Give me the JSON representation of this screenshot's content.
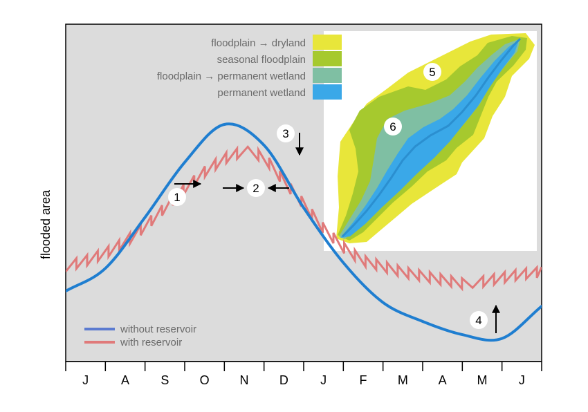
{
  "chart_data": {
    "type": "line",
    "ylabel": "flooded area",
    "x_ticks": [
      "J",
      "A",
      "S",
      "O",
      "N",
      "D",
      "J",
      "F",
      "M",
      "A",
      "M",
      "J"
    ],
    "series": [
      {
        "name": "without reservoir",
        "color": "#1f7ed0",
        "x": [
          0,
          1,
          2,
          3,
          4,
          5,
          6,
          7,
          8,
          9,
          10,
          11,
          12
        ],
        "values": [
          0.12,
          0.24,
          0.51,
          0.8,
          1.0,
          0.89,
          0.56,
          0.27,
          0.06,
          -0.04,
          -0.11,
          -0.13,
          0.04
        ]
      },
      {
        "name": "with reservoir",
        "color": "#e07a7a",
        "x": [
          0,
          0.5,
          1,
          1.5,
          2,
          2.5,
          3,
          3.5,
          4,
          4.5,
          5,
          5.5,
          6,
          6.5,
          7,
          7.5,
          8,
          8.5,
          9,
          9.5,
          10,
          10.5,
          11,
          11.5,
          12
        ],
        "values": [
          0.25,
          0.28,
          0.32,
          0.38,
          0.46,
          0.56,
          0.66,
          0.75,
          0.82,
          0.86,
          0.83,
          0.7,
          0.58,
          0.45,
          0.35,
          0.28,
          0.25,
          0.22,
          0.2,
          0.18,
          0.16,
          0.17,
          0.19,
          0.21,
          0.22
        ]
      }
    ],
    "legend_placement": "bottom-left",
    "annotations": [
      "1",
      "2",
      "3",
      "4",
      "5",
      "6"
    ],
    "inset_legend": [
      {
        "label": "floodplain → dryland",
        "color": "#e8e63a"
      },
      {
        "label": "seasonal floodplain",
        "color": "#a6c92e"
      },
      {
        "label": "floodplain → permanent wetland",
        "color": "#7fbfa3"
      },
      {
        "label": "permanent wetland",
        "color": "#3aa8e8"
      }
    ],
    "grid": false
  }
}
